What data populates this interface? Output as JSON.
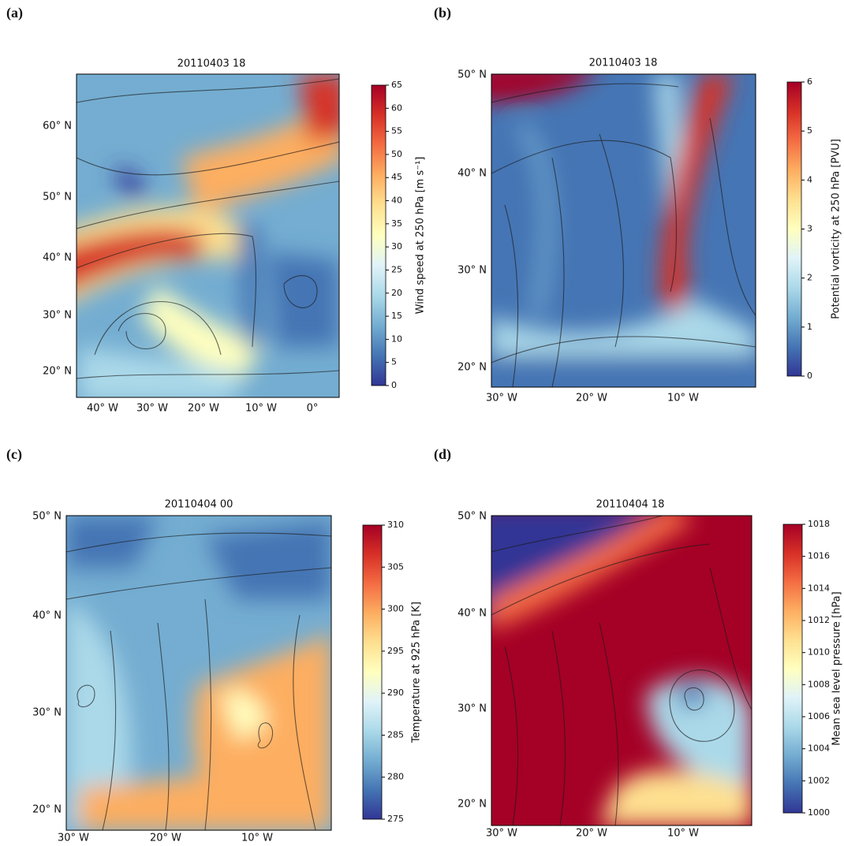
{
  "panels": [
    {
      "label": "(a)",
      "title": "20110403 18",
      "lat_ticks": [
        "60° N",
        "50° N",
        "40° N",
        "30° N",
        "20° N"
      ],
      "lon_ticks": [
        "40° W",
        "30° W",
        "20° W",
        "10° W",
        "0°"
      ],
      "colorbar": {
        "label": "Wind speed at 250 hPa [m s⁻¹]",
        "lim": [
          0,
          65
        ],
        "ticks": [
          0,
          5,
          10,
          15,
          20,
          25,
          30,
          35,
          40,
          45,
          50,
          55,
          60,
          65
        ]
      }
    },
    {
      "label": "(b)",
      "title": "20110403 18",
      "lat_ticks": [
        "50° N",
        "40° N",
        "30° N",
        "20° N"
      ],
      "lon_ticks": [
        "30° W",
        "20° W",
        "10° W"
      ],
      "colorbar": {
        "label": "Potential vorticity at 250 hPa [PVU]",
        "lim": [
          0,
          6
        ],
        "ticks": [
          0,
          1,
          2,
          3,
          4,
          5,
          6
        ]
      }
    },
    {
      "label": "(c)",
      "title": "20110404 00",
      "lat_ticks": [
        "50° N",
        "40° N",
        "30° N",
        "20° N"
      ],
      "lon_ticks": [
        "30° W",
        "20° W",
        "10° W"
      ],
      "colorbar": {
        "label": "Temperature at 925 hPa [K]",
        "lim": [
          275,
          310
        ],
        "ticks": [
          275,
          280,
          285,
          290,
          295,
          300,
          305,
          310
        ]
      }
    },
    {
      "label": "(d)",
      "title": "20110404 18",
      "lat_ticks": [
        "50° N",
        "40° N",
        "30° N",
        "20° N"
      ],
      "lon_ticks": [
        "30° W",
        "20° W",
        "10° W"
      ],
      "colorbar": {
        "label": "Mean sea level pressure [hPa]",
        "lim": [
          1000,
          1018
        ],
        "ticks": [
          1000,
          1002,
          1004,
          1006,
          1008,
          1010,
          1012,
          1014,
          1016,
          1018
        ]
      }
    }
  ]
}
